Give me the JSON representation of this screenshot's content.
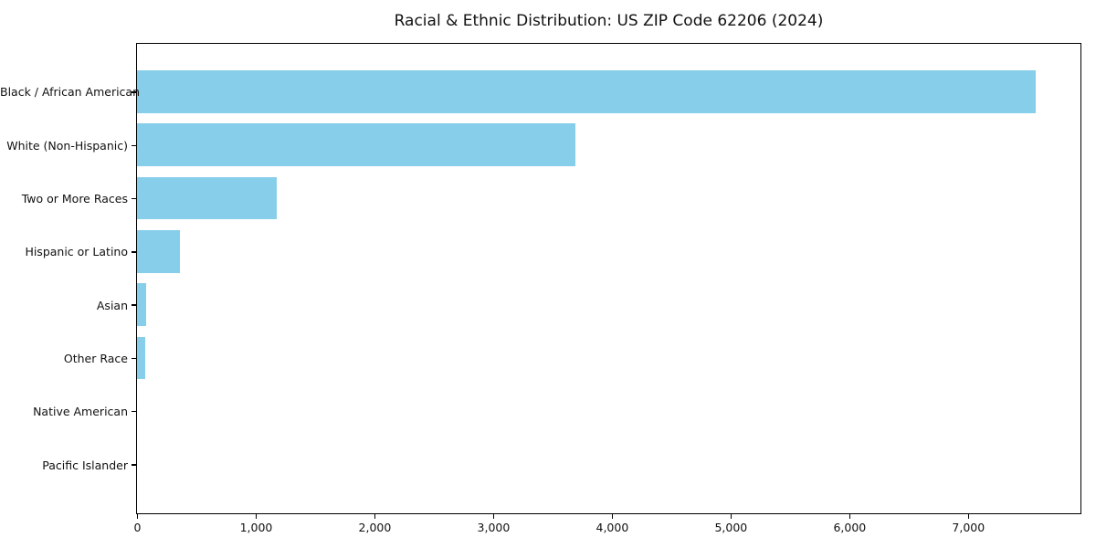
{
  "title": "Racial & Ethnic Distribution: US ZIP Code 62206 (2024)",
  "colors": {
    "bar": "#87CEEB",
    "axis": "#000000",
    "background": "#FFFFFF",
    "text": "#111111"
  },
  "chart_data": {
    "type": "bar",
    "orientation": "horizontal",
    "title": "Racial & Ethnic Distribution: US ZIP Code 62206 (2024)",
    "categories": [
      "Black / African American",
      "White (Non-Hispanic)",
      "Two or More Races",
      "Hispanic or Latino",
      "Asian",
      "Other Race",
      "Native American",
      "Pacific Islander"
    ],
    "values": [
      7570,
      3690,
      1180,
      360,
      80,
      70,
      0,
      0
    ],
    "bar_color": "#87CEEB",
    "xlabel": "",
    "ylabel": "",
    "xlim": [
      0,
      7940
    ],
    "x_ticks": [
      0,
      1000,
      2000,
      3000,
      4000,
      5000,
      6000,
      7000
    ],
    "x_tick_labels": [
      "0",
      "1,000",
      "2,000",
      "3,000",
      "4,000",
      "5,000",
      "6,000",
      "7,000"
    ],
    "grid": false,
    "legend": "none"
  }
}
